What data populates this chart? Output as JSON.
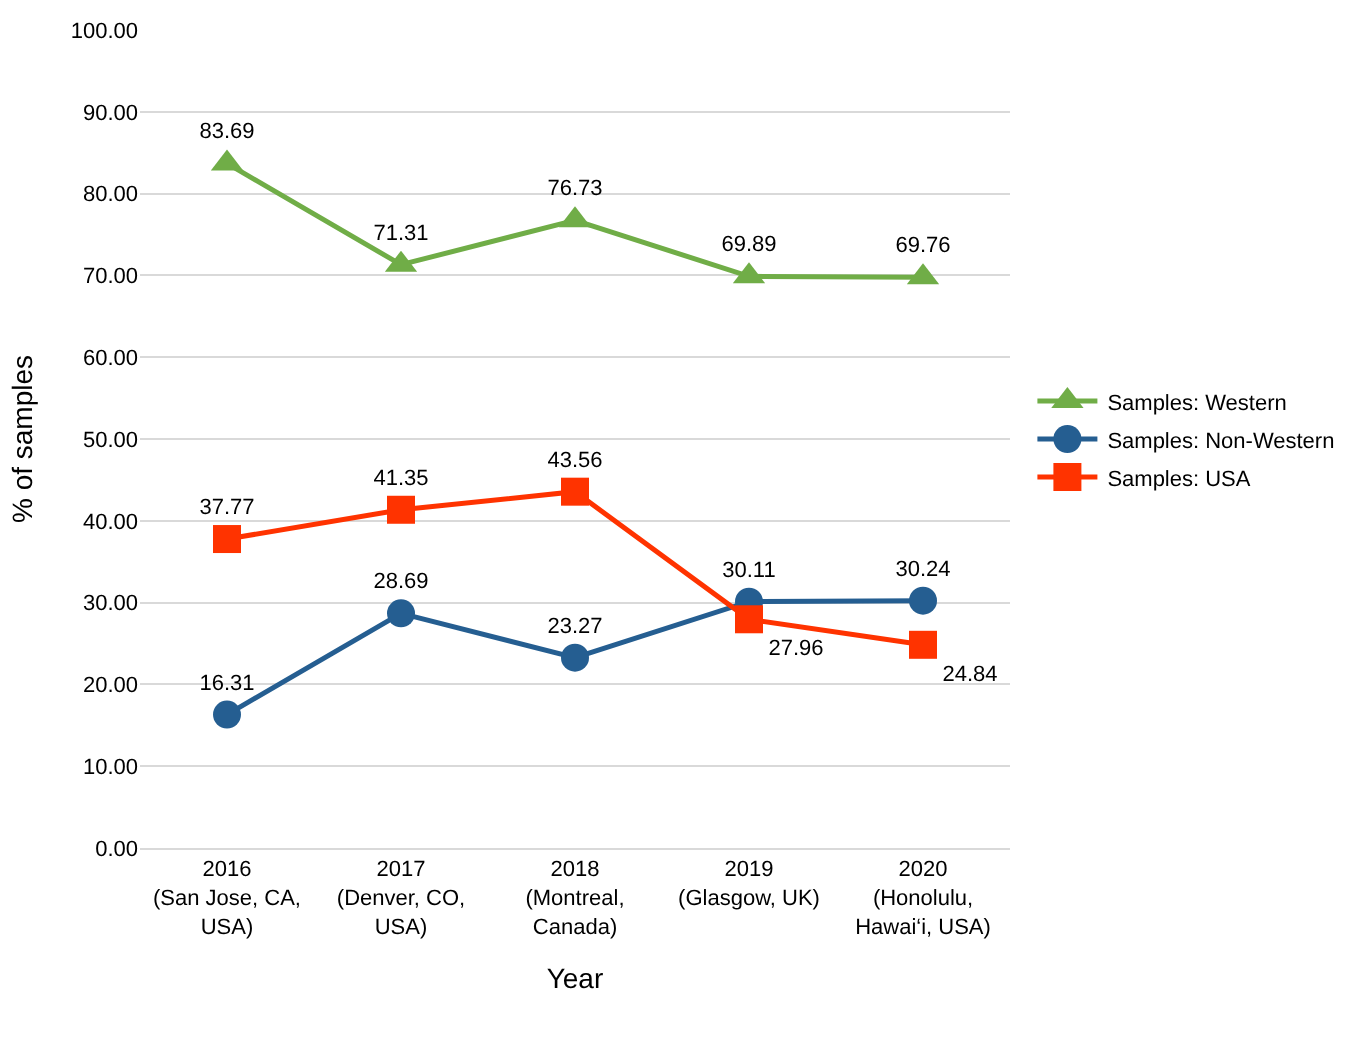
{
  "chart_data": {
    "type": "line",
    "xlabel": "Year",
    "ylabel": "% of samples",
    "categories": [
      "2016\n(San Jose, CA,\nUSA)",
      "2017\n(Denver, CO,\nUSA)",
      "2018\n(Montreal,\nCanada)",
      "2019\n(Glasgow, UK)",
      "2020\n(Honolulu,\nHawai‘i, USA)"
    ],
    "series": [
      {
        "name": "Samples: Western",
        "color": "#70ad47",
        "marker": "triangle",
        "values": [
          83.69,
          71.31,
          76.73,
          69.89,
          69.76
        ]
      },
      {
        "name": "Samples: Non-Western",
        "color": "#255e91",
        "marker": "circle",
        "values": [
          16.31,
          28.69,
          23.27,
          30.11,
          30.24
        ]
      },
      {
        "name": "Samples: USA",
        "color": "#ff3300",
        "marker": "square",
        "values": [
          37.77,
          41.35,
          43.56,
          27.96,
          24.84
        ]
      }
    ],
    "ylim": [
      0,
      100
    ],
    "yticks": [
      {
        "value": 0,
        "label": "0.00"
      },
      {
        "value": 10,
        "label": "10.00"
      },
      {
        "value": 20,
        "label": "20.00"
      },
      {
        "value": 30,
        "label": "30.00"
      },
      {
        "value": 40,
        "label": "40.00"
      },
      {
        "value": 50,
        "label": "50.00"
      },
      {
        "value": 60,
        "label": "60.00"
      },
      {
        "value": 70,
        "label": "70.00"
      },
      {
        "value": 80,
        "label": "80.00"
      },
      {
        "value": 90,
        "label": "90.00"
      },
      {
        "value": 100,
        "label": "100.00"
      }
    ],
    "grid": "y",
    "legend": "right",
    "data_labels": true,
    "line_style": "solid"
  }
}
